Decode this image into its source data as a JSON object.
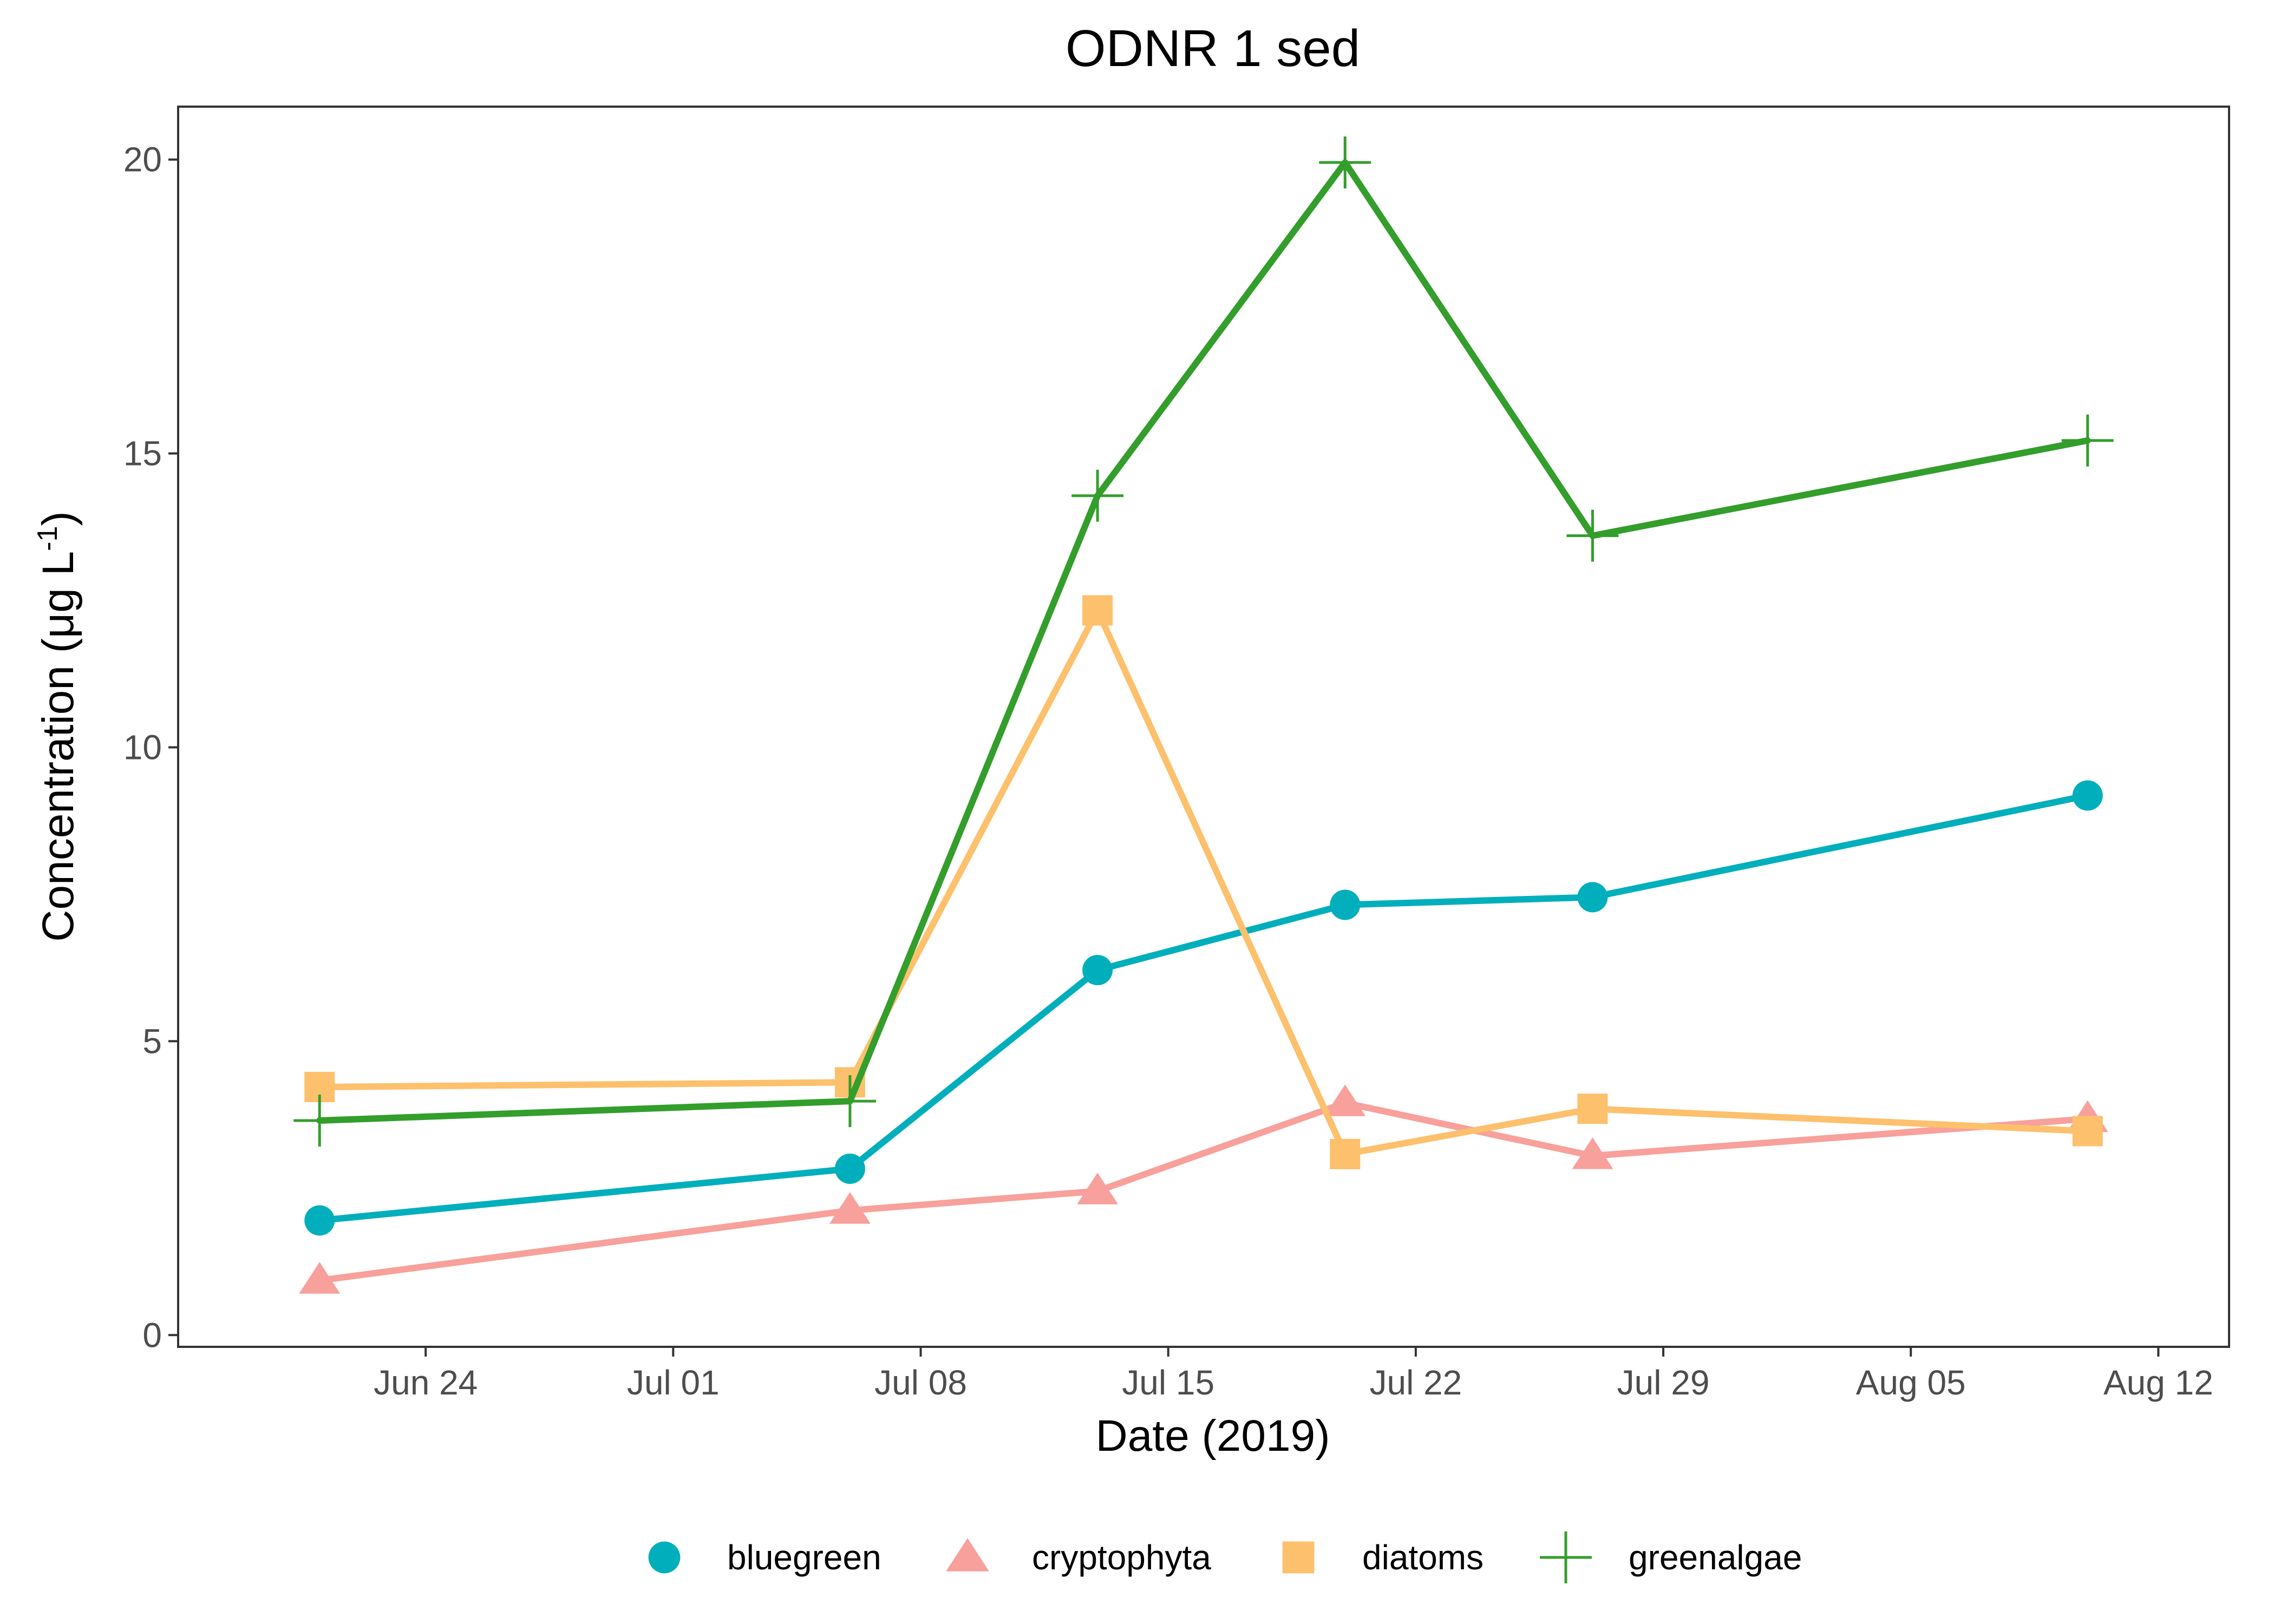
{
  "chart_data": {
    "type": "line",
    "title": "ODNR 1 sed",
    "xlabel": "Date (2019)",
    "ylabel": {
      "prefix": "Concentration (μg L",
      "superscript": "-1",
      "suffix": ")"
    },
    "x": [
      "2019-06-21",
      "2019-07-06",
      "2019-07-13",
      "2019-07-20",
      "2019-07-27",
      "2019-08-10"
    ],
    "xlim": [
      "2019-06-17",
      "2019-08-14"
    ],
    "x_ticks": [
      {
        "date": "2019-06-24",
        "label": "Jun 24"
      },
      {
        "date": "2019-07-01",
        "label": "Jul 01"
      },
      {
        "date": "2019-07-08",
        "label": "Jul 08"
      },
      {
        "date": "2019-07-15",
        "label": "Jul 15"
      },
      {
        "date": "2019-07-22",
        "label": "Jul 22"
      },
      {
        "date": "2019-07-29",
        "label": "Jul 29"
      },
      {
        "date": "2019-08-05",
        "label": "Aug 05"
      },
      {
        "date": "2019-08-12",
        "label": "Aug 12"
      }
    ],
    "ylim": [
      -0.2,
      20.9
    ],
    "y_ticks": [
      0,
      5,
      10,
      15,
      20
    ],
    "grid": false,
    "legend_position": "bottom",
    "series": [
      {
        "name": "bluegreen",
        "color": "#00AFBB",
        "shape": "circle",
        "values": [
          1.95,
          2.83,
          6.21,
          7.32,
          7.45,
          9.18
        ]
      },
      {
        "name": "cryptophyta",
        "color": "#F8A09B",
        "shape": "triangle",
        "values": [
          0.93,
          2.12,
          2.45,
          3.95,
          3.05,
          3.68
        ]
      },
      {
        "name": "diatoms",
        "color": "#FDC06C",
        "shape": "square",
        "values": [
          4.22,
          4.3,
          12.33,
          3.08,
          3.85,
          3.47
        ]
      },
      {
        "name": "greenalgae",
        "color": "#339E2B",
        "shape": "plus",
        "values": [
          3.65,
          3.98,
          14.28,
          19.95,
          13.6,
          15.22
        ]
      }
    ]
  }
}
